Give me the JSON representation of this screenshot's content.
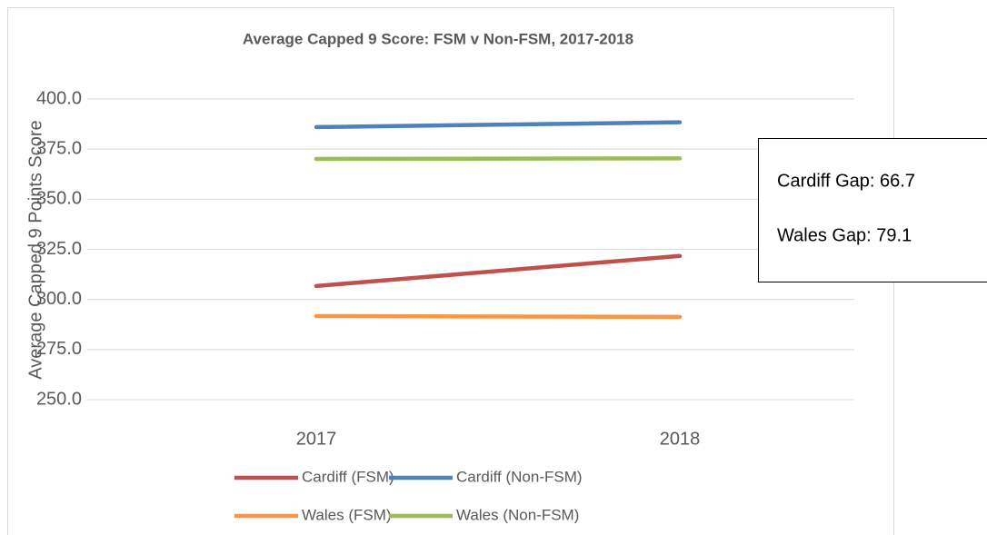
{
  "chart_data": {
    "type": "line",
    "title": "Average Capped 9 Score: FSM v Non-FSM, 2017-2018",
    "y_label": "Average Capped 9 Points Score",
    "categories": [
      "2017",
      "2018"
    ],
    "series": [
      {
        "name": "Cardiff (FSM)",
        "color": "#c0504d",
        "values": [
          306.7,
          321.7
        ]
      },
      {
        "name": "Cardiff (Non-FSM)",
        "color": "#4f81bd",
        "values": [
          386.0,
          388.4
        ]
      },
      {
        "name": "Wales (FSM)",
        "color": "#f79646",
        "values": [
          291.7,
          291.3
        ]
      },
      {
        "name": "Wales (Non-FSM)",
        "color": "#9bbb59",
        "values": [
          370.1,
          370.4
        ]
      }
    ],
    "ylim": [
      250,
      400
    ],
    "yticks": [
      {
        "value": 250,
        "label": "250.0"
      },
      {
        "value": 275,
        "label": "275.0"
      },
      {
        "value": 300,
        "label": "300.0"
      },
      {
        "value": 325,
        "label": "325.0"
      },
      {
        "value": 350,
        "label": "350.0"
      },
      {
        "value": 375,
        "label": "375.0"
      },
      {
        "value": 400,
        "label": "400.0"
      }
    ],
    "grid": true,
    "annotations": [
      "Cardiff Gap: 66.7",
      "Wales Gap: 79.1"
    ]
  }
}
